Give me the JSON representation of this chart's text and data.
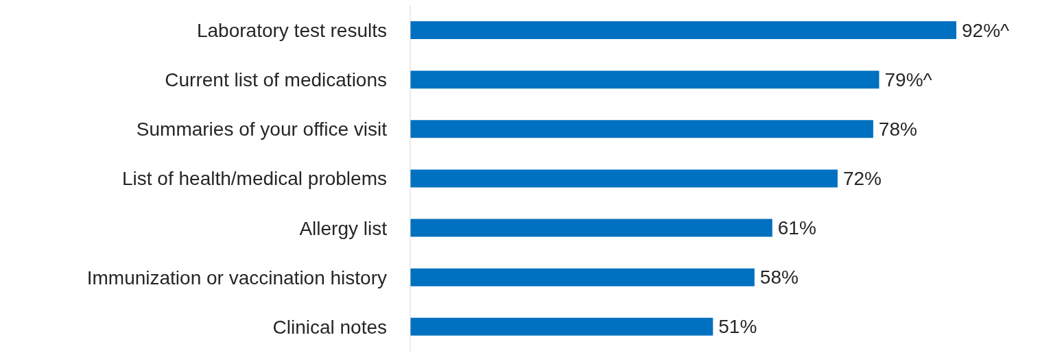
{
  "chart_data": {
    "type": "bar",
    "orientation": "horizontal",
    "categories": [
      "Laboratory test results",
      "Current list of medications",
      "Summaries of your office visit",
      "List of health/medical problems",
      "Allergy list",
      "Immunization or vaccination history",
      "Clinical notes"
    ],
    "values": [
      92,
      79,
      78,
      72,
      61,
      58,
      51
    ],
    "value_labels": [
      "92%^",
      "79%^",
      "78%",
      "72%",
      "61%",
      "58%",
      "51%"
    ],
    "color": "#0070c0"
  }
}
